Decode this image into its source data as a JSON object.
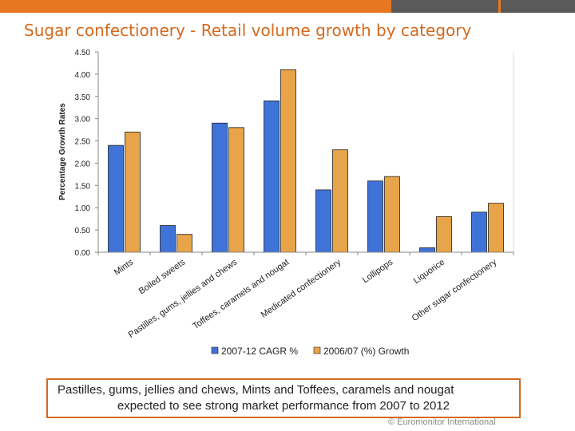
{
  "header": {
    "title": "Sugar confectionery - Retail volume growth by category"
  },
  "chart_data": {
    "type": "bar",
    "title": "",
    "xlabel": "",
    "ylabel": "Percentage Growth Rates",
    "ylim": [
      0,
      4.5
    ],
    "yticks": [
      "0.00",
      "0.50",
      "1.00",
      "1.50",
      "2.00",
      "2.50",
      "3.00",
      "3.50",
      "4.00",
      "4.50"
    ],
    "categories": [
      "Mints",
      "Boiled sweets",
      "Pastilles, gums, jellies and chews",
      "Toffees, caramels and nougat",
      "Medicated confectionery",
      "Lollipops",
      "Liquorice",
      "Other sugar confectionery"
    ],
    "series": [
      {
        "name": "2007-12 CAGR %",
        "color": "#3f73d8",
        "values": [
          2.4,
          0.6,
          2.9,
          3.4,
          1.4,
          1.6,
          0.1,
          0.9
        ]
      },
      {
        "name": "2006/07 (%) Growth",
        "color": "#e8a448",
        "values": [
          2.7,
          0.4,
          2.8,
          4.1,
          2.3,
          1.7,
          0.8,
          1.1
        ]
      }
    ],
    "legend_position": "bottom",
    "grid": false
  },
  "caption": {
    "line1": "Pastilles, gums, jellies and chews, Mints and Toffees, caramels and nougat",
    "line2": "expected to see strong market performance from 2007 to 2012"
  },
  "footer": {
    "credit": "© Euromonitor International"
  }
}
